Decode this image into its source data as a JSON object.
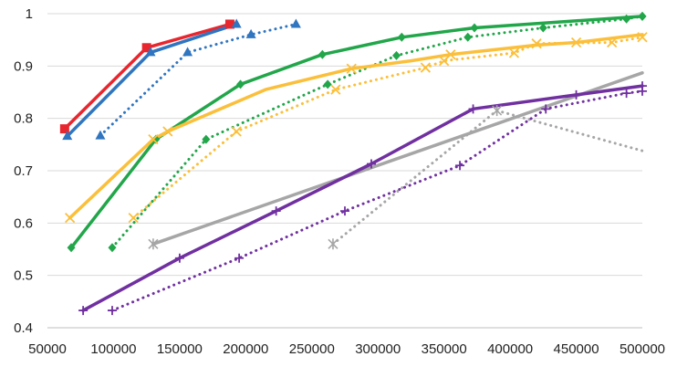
{
  "chart_data": {
    "type": "line",
    "xlim": [
      50000,
      500000
    ],
    "ylim": [
      0.4,
      1.0
    ],
    "xticks": [
      50000,
      100000,
      150000,
      200000,
      250000,
      300000,
      350000,
      400000,
      450000,
      500000
    ],
    "yticks": [
      0.4,
      0.5,
      0.6,
      0.7,
      0.8,
      0.9,
      1.0
    ],
    "xtick_labels": [
      "50000",
      "100000",
      "150000",
      "200000",
      "250000",
      "300000",
      "350000",
      "400000",
      "450000",
      "500000"
    ],
    "ytick_labels": [
      "0.4",
      "0.5",
      "0.6",
      "0.7",
      "0.8",
      "0.9",
      "1"
    ],
    "grid": "horizontal",
    "legend": "none",
    "series": [
      {
        "color": "#e8262e",
        "dash": "solid",
        "marker": "square",
        "markers": [
          0,
          1,
          2
        ],
        "points": [
          [
            63000,
            0.78
          ],
          [
            125000,
            0.935
          ],
          [
            188000,
            0.98
          ]
        ]
      },
      {
        "color": "#2f75c0",
        "dash": "solid",
        "marker": "triangle",
        "markers": [
          0,
          1,
          2
        ],
        "points": [
          [
            65000,
            0.766
          ],
          [
            128000,
            0.926
          ],
          [
            193000,
            0.98
          ]
        ]
      },
      {
        "color": "#2f75c0",
        "dash": "dotted",
        "marker": "triangle",
        "markers": [
          0,
          1,
          2,
          3
        ],
        "points": [
          [
            90000,
            0.767
          ],
          [
            156000,
            0.926
          ],
          [
            204000,
            0.96
          ],
          [
            238000,
            0.98
          ]
        ]
      },
      {
        "color": "#22a64a",
        "dash": "solid",
        "marker": "diamond",
        "markers": [
          0,
          1,
          2,
          3,
          4,
          5,
          6
        ],
        "points": [
          [
            68000,
            0.553
          ],
          [
            132000,
            0.76
          ],
          [
            196000,
            0.865
          ],
          [
            258000,
            0.922
          ],
          [
            318000,
            0.955
          ],
          [
            373000,
            0.973
          ],
          [
            500000,
            0.995
          ]
        ]
      },
      {
        "color": "#22a64a",
        "dash": "dotted",
        "marker": "diamond",
        "markers": [
          0,
          1,
          2,
          3,
          4,
          5,
          6,
          7
        ],
        "points": [
          [
            99000,
            0.553
          ],
          [
            170000,
            0.76
          ],
          [
            262000,
            0.865
          ],
          [
            314000,
            0.92
          ],
          [
            368000,
            0.955
          ],
          [
            425000,
            0.973
          ],
          [
            488000,
            0.99
          ],
          [
            500000,
            0.995
          ]
        ]
      },
      {
        "color": "#fbbf3a",
        "dash": "solid",
        "marker": "x",
        "markers": [
          0,
          1,
          2,
          4,
          6,
          8
        ],
        "points": [
          [
            67000,
            0.61
          ],
          [
            130000,
            0.76
          ],
          [
            141000,
            0.775
          ],
          [
            215000,
            0.855
          ],
          [
            280000,
            0.895
          ],
          [
            325000,
            0.91
          ],
          [
            355000,
            0.922
          ],
          [
            420000,
            0.94
          ],
          [
            450000,
            0.945
          ],
          [
            500000,
            0.96
          ]
        ]
      },
      {
        "color": "#fbbf3a",
        "dash": "dotted",
        "marker": "x",
        "markers": [
          0,
          1,
          2,
          3,
          4,
          5,
          6,
          7,
          8
        ],
        "points": [
          [
            115000,
            0.61
          ],
          [
            193000,
            0.775
          ],
          [
            268000,
            0.855
          ],
          [
            336000,
            0.897
          ],
          [
            350000,
            0.91
          ],
          [
            403000,
            0.925
          ],
          [
            420000,
            0.943
          ],
          [
            477000,
            0.945
          ],
          [
            500000,
            0.955
          ]
        ]
      },
      {
        "color": "#a6a6a6",
        "dash": "solid",
        "marker": "star",
        "markers": [
          0
        ],
        "points": [
          [
            130000,
            0.56
          ],
          [
            500000,
            0.887
          ]
        ]
      },
      {
        "color": "#a6a6a6",
        "dash": "dotted",
        "marker": "star",
        "markers": [
          0,
          1
        ],
        "points": [
          [
            266000,
            0.56
          ],
          [
            390000,
            0.815
          ],
          [
            500000,
            0.738
          ]
        ]
      },
      {
        "color": "#7030a0",
        "dash": "solid",
        "marker": "plus",
        "markers": [
          0,
          1,
          2,
          3,
          4,
          5,
          6
        ],
        "points": [
          [
            77000,
            0.433
          ],
          [
            150000,
            0.533
          ],
          [
            223000,
            0.623
          ],
          [
            295000,
            0.713
          ],
          [
            372000,
            0.818
          ],
          [
            450000,
            0.845
          ],
          [
            500000,
            0.862
          ]
        ]
      },
      {
        "color": "#7030a0",
        "dash": "dotted",
        "marker": "plus",
        "markers": [
          0,
          1,
          2,
          3,
          4,
          5,
          6
        ],
        "points": [
          [
            99000,
            0.433
          ],
          [
            195000,
            0.533
          ],
          [
            275000,
            0.623
          ],
          [
            362000,
            0.71
          ],
          [
            427000,
            0.818
          ],
          [
            488000,
            0.848
          ],
          [
            500000,
            0.852
          ]
        ]
      }
    ]
  }
}
